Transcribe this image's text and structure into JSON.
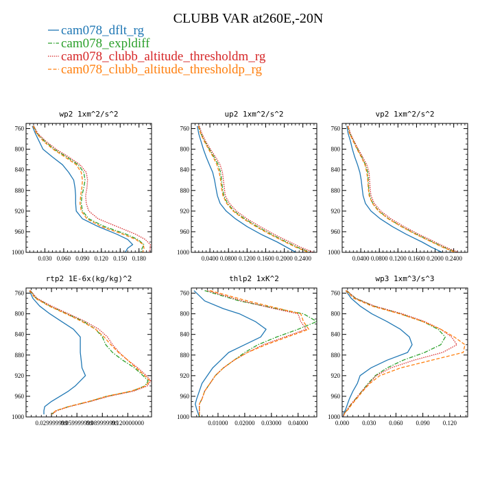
{
  "figure": {
    "title": "CLUBB VAR at260E,-20N",
    "legend": [
      {
        "name": "cam078_dflt_rg",
        "color": "#1f77b4",
        "dash": "solid"
      },
      {
        "name": "cam078_expldiff",
        "color": "#2ca02c",
        "dash": "dashdot"
      },
      {
        "name": "cam078_clubb_altitude_thresholdm_rg",
        "color": "#d62728",
        "dash": "dotted"
      },
      {
        "name": "cam078_clubb_altitude_thresholdp_rg",
        "color": "#ff7f0e",
        "dash": "dashed"
      }
    ]
  },
  "chart_data": [
    {
      "type": "line",
      "title": "wp2   1xm^2/s^2",
      "xlim": [
        0,
        0.2
      ],
      "ylim": [
        1000,
        750
      ],
      "xticks": [
        0.03,
        0.06,
        0.09,
        0.12,
        0.15,
        0.18
      ],
      "xtick_labels": [
        "0.030",
        "0.060",
        "0.090",
        "0.120",
        "0.150",
        "0.180"
      ],
      "yticks": [
        760,
        800,
        840,
        880,
        920,
        960,
        1000
      ],
      "ytick_labels": [
        "760",
        "800",
        "840",
        "880",
        "920",
        "960",
        "1000"
      ],
      "y": [
        755,
        770,
        785,
        800,
        815,
        830,
        845,
        860,
        875,
        890,
        905,
        920,
        935,
        950,
        965,
        975,
        985,
        992,
        1000
      ],
      "series": [
        {
          "name": "cam078_dflt_rg",
          "values": [
            0.01,
            0.015,
            0.021,
            0.027,
            0.042,
            0.058,
            0.068,
            0.076,
            0.078,
            0.079,
            0.079,
            0.08,
            0.09,
            0.115,
            0.145,
            0.162,
            0.17,
            0.162,
            0.158
          ]
        },
        {
          "name": "cam078_expldiff",
          "values": [
            0.012,
            0.018,
            0.03,
            0.045,
            0.065,
            0.083,
            0.092,
            0.094,
            0.092,
            0.089,
            0.088,
            0.09,
            0.1,
            0.125,
            0.16,
            0.178,
            0.188,
            0.185,
            0.183
          ]
        },
        {
          "name": "cam078_clubb_altitude_thresholdm_rg",
          "values": [
            0.012,
            0.019,
            0.032,
            0.048,
            0.068,
            0.086,
            0.096,
            0.098,
            0.097,
            0.095,
            0.096,
            0.1,
            0.115,
            0.145,
            0.175,
            0.19,
            0.198,
            0.198,
            0.196
          ]
        },
        {
          "name": "cam078_clubb_altitude_thresholdp_rg",
          "values": [
            0.011,
            0.017,
            0.028,
            0.043,
            0.062,
            0.08,
            0.088,
            0.09,
            0.089,
            0.087,
            0.086,
            0.088,
            0.097,
            0.12,
            0.155,
            0.175,
            0.187,
            0.188,
            0.186
          ]
        }
      ]
    },
    {
      "type": "line",
      "title": "up2   1xm^2/s^2",
      "xlim": [
        0,
        0.27
      ],
      "ylim": [
        1000,
        750
      ],
      "xticks": [
        0.04,
        0.08,
        0.12,
        0.16,
        0.2,
        0.24
      ],
      "xtick_labels": [
        "0.0400",
        "0.0800",
        "0.1200",
        "0.1600",
        "0.2000",
        "0.2400"
      ],
      "yticks": [
        760,
        800,
        840,
        880,
        920,
        960,
        1000
      ],
      "ytick_labels": [
        "760",
        "800",
        "840",
        "880",
        "920",
        "960",
        "1000"
      ],
      "y": [
        755,
        770,
        785,
        800,
        815,
        830,
        845,
        860,
        875,
        890,
        905,
        920,
        935,
        950,
        965,
        980,
        990,
        1000
      ],
      "series": [
        {
          "name": "cam078_dflt_rg",
          "values": [
            0.013,
            0.016,
            0.021,
            0.026,
            0.032,
            0.039,
            0.046,
            0.05,
            0.053,
            0.056,
            0.062,
            0.075,
            0.095,
            0.12,
            0.15,
            0.185,
            0.205,
            0.225
          ]
        },
        {
          "name": "cam078_expldiff",
          "values": [
            0.016,
            0.021,
            0.029,
            0.039,
            0.049,
            0.058,
            0.063,
            0.065,
            0.067,
            0.07,
            0.078,
            0.092,
            0.115,
            0.142,
            0.172,
            0.205,
            0.228,
            0.255
          ]
        },
        {
          "name": "cam078_clubb_altitude_thresholdm_rg",
          "values": [
            0.017,
            0.023,
            0.031,
            0.041,
            0.052,
            0.062,
            0.067,
            0.069,
            0.071,
            0.073,
            0.082,
            0.097,
            0.12,
            0.148,
            0.178,
            0.212,
            0.235,
            0.263
          ]
        },
        {
          "name": "cam078_clubb_altitude_thresholdp_rg",
          "values": [
            0.015,
            0.02,
            0.028,
            0.037,
            0.047,
            0.055,
            0.06,
            0.063,
            0.065,
            0.068,
            0.076,
            0.09,
            0.112,
            0.139,
            0.169,
            0.202,
            0.225,
            0.252
          ]
        }
      ]
    },
    {
      "type": "line",
      "title": "vp2   1xm^2/s^2",
      "xlim": [
        0,
        0.27
      ],
      "ylim": [
        1000,
        750
      ],
      "xticks": [
        0.04,
        0.08,
        0.12,
        0.16,
        0.2,
        0.24
      ],
      "xtick_labels": [
        "0.0400",
        "0.0800",
        "0.1200",
        "0.1600",
        "0.2000",
        "0.2400"
      ],
      "yticks": [
        760,
        800,
        840,
        880,
        920,
        960,
        1000
      ],
      "ytick_labels": [
        "760",
        "800",
        "840",
        "880",
        "920",
        "960",
        "1000"
      ],
      "y": [
        755,
        770,
        785,
        800,
        815,
        830,
        845,
        860,
        875,
        890,
        905,
        920,
        935,
        950,
        965,
        980,
        990,
        1000
      ],
      "series": [
        {
          "name": "cam078_dflt_rg",
          "values": [
            0.01,
            0.013,
            0.018,
            0.022,
            0.027,
            0.033,
            0.038,
            0.041,
            0.043,
            0.045,
            0.05,
            0.062,
            0.082,
            0.108,
            0.138,
            0.172,
            0.192,
            0.215
          ]
        },
        {
          "name": "cam078_expldiff",
          "values": [
            0.012,
            0.017,
            0.025,
            0.033,
            0.042,
            0.05,
            0.055,
            0.056,
            0.057,
            0.059,
            0.066,
            0.079,
            0.1,
            0.128,
            0.16,
            0.195,
            0.218,
            0.245
          ]
        },
        {
          "name": "cam078_clubb_altitude_thresholdm_rg",
          "values": [
            0.013,
            0.018,
            0.026,
            0.035,
            0.044,
            0.053,
            0.058,
            0.059,
            0.06,
            0.062,
            0.069,
            0.083,
            0.105,
            0.133,
            0.165,
            0.2,
            0.223,
            0.25
          ]
        },
        {
          "name": "cam078_clubb_altitude_thresholdp_rg",
          "values": [
            0.012,
            0.016,
            0.024,
            0.032,
            0.041,
            0.049,
            0.053,
            0.055,
            0.056,
            0.058,
            0.065,
            0.078,
            0.099,
            0.127,
            0.158,
            0.193,
            0.216,
            0.243
          ]
        }
      ]
    },
    {
      "type": "line",
      "title": "rtp2   1E-6x(kg/kg)^2",
      "xlim": [
        0,
        0.148
      ],
      "ylim": [
        1000,
        750
      ],
      "xticks": [
        0.03,
        0.06,
        0.09,
        0.12
      ],
      "xtick_labels": [
        "0.029999999",
        "0.059999999",
        "0.089999999",
        "0.120000000"
      ],
      "yticks": [
        760,
        800,
        840,
        880,
        920,
        960,
        1000
      ],
      "ytick_labels": [
        "760",
        "800",
        "840",
        "880",
        "920",
        "960",
        "1000"
      ],
      "y": [
        755,
        770,
        785,
        800,
        815,
        830,
        845,
        860,
        875,
        890,
        905,
        920,
        930,
        940,
        950,
        960,
        970,
        980,
        988,
        995
      ],
      "series": [
        {
          "name": "cam078_dflt_rg",
          "values": [
            0.004,
            0.008,
            0.016,
            0.028,
            0.042,
            0.056,
            0.064,
            0.064,
            0.064,
            0.065,
            0.066,
            0.07,
            0.064,
            0.058,
            0.05,
            0.04,
            0.03,
            0.022,
            0.021,
            0.021
          ]
        },
        {
          "name": "cam078_expldiff",
          "values": [
            0.005,
            0.012,
            0.028,
            0.048,
            0.068,
            0.082,
            0.09,
            0.094,
            0.102,
            0.114,
            0.128,
            0.138,
            0.144,
            0.14,
            0.125,
            0.095,
            0.075,
            0.05,
            0.035,
            0.03
          ]
        },
        {
          "name": "cam078_clubb_altitude_thresholdm_rg",
          "values": [
            0.005,
            0.013,
            0.03,
            0.05,
            0.07,
            0.086,
            0.096,
            0.102,
            0.11,
            0.12,
            0.132,
            0.142,
            0.147,
            0.143,
            0.127,
            0.098,
            0.076,
            0.051,
            0.036,
            0.031
          ]
        },
        {
          "name": "cam078_clubb_altitude_thresholdp_rg",
          "values": [
            0.004,
            0.011,
            0.027,
            0.047,
            0.066,
            0.082,
            0.092,
            0.1,
            0.109,
            0.12,
            0.13,
            0.14,
            0.146,
            0.141,
            0.124,
            0.095,
            0.074,
            0.05,
            0.035,
            0.03
          ]
        }
      ]
    },
    {
      "type": "line",
      "title": "thlp2   1xK^2",
      "xlim": [
        0,
        0.047
      ],
      "ylim": [
        1000,
        750
      ],
      "xticks": [
        0.01,
        0.02,
        0.03,
        0.04
      ],
      "xtick_labels": [
        "0.01000",
        "0.02000",
        "0.03000",
        "0.04000"
      ],
      "yticks": [
        760,
        800,
        840,
        880,
        920,
        960,
        1000
      ],
      "ytick_labels": [
        "760",
        "800",
        "840",
        "880",
        "920",
        "960",
        "1000"
      ],
      "y": [
        755,
        775,
        790,
        800,
        815,
        830,
        845,
        860,
        875,
        890,
        905,
        920,
        935,
        950,
        965,
        975,
        985,
        992,
        1000
      ],
      "series": [
        {
          "name": "cam078_dflt_rg",
          "values": [
            0.001,
            0.005,
            0.012,
            0.018,
            0.024,
            0.028,
            0.026,
            0.02,
            0.014,
            0.011,
            0.008,
            0.006,
            0.004,
            0.003,
            0.002,
            0.0015,
            0.002,
            0.0025,
            0.003
          ]
        },
        {
          "name": "cam078_expldiff",
          "values": [
            0.005,
            0.018,
            0.032,
            0.042,
            0.047,
            0.04,
            0.032,
            0.025,
            0.02,
            0.016,
            0.012,
            0.009,
            0.007,
            0.005,
            0.004,
            0.003,
            0.003,
            0.003,
            0.003
          ]
        },
        {
          "name": "cam078_clubb_altitude_thresholdm_rg",
          "values": [
            0.006,
            0.019,
            0.031,
            0.04,
            0.041,
            0.043,
            0.035,
            0.027,
            0.021,
            0.016,
            0.012,
            0.009,
            0.007,
            0.005,
            0.004,
            0.003,
            0.003,
            0.003,
            0.003
          ]
        },
        {
          "name": "cam078_clubb_altitude_thresholdp_rg",
          "values": [
            0.007,
            0.021,
            0.033,
            0.041,
            0.042,
            0.044,
            0.036,
            0.028,
            0.021,
            0.016,
            0.012,
            0.009,
            0.007,
            0.005,
            0.004,
            0.003,
            0.003,
            0.003,
            0.003
          ]
        }
      ]
    },
    {
      "type": "line",
      "title": "wp3   1xm^3/s^3",
      "xlim": [
        0,
        0.14
      ],
      "ylim": [
        1000,
        750
      ],
      "xticks": [
        0,
        0.03,
        0.06,
        0.09,
        0.12
      ],
      "xtick_labels": [
        "0.000",
        "0.030",
        "0.060",
        "0.090",
        "0.120"
      ],
      "yticks": [
        760,
        800,
        840,
        880,
        920,
        960,
        1000
      ],
      "ytick_labels": [
        "760",
        "800",
        "840",
        "880",
        "920",
        "960",
        "1000"
      ],
      "y": [
        755,
        770,
        785,
        800,
        815,
        830,
        845,
        860,
        875,
        890,
        905,
        920,
        935,
        950,
        965,
        975,
        985,
        992,
        1000
      ],
      "series": [
        {
          "name": "cam078_dflt_rg",
          "values": [
            0.004,
            0.01,
            0.02,
            0.033,
            0.05,
            0.065,
            0.075,
            0.078,
            0.073,
            0.05,
            0.032,
            0.02,
            0.017,
            0.012,
            0.008,
            0.006,
            0.004,
            0.002,
            0.001
          ]
        },
        {
          "name": "cam078_expldiff",
          "values": [
            0.005,
            0.015,
            0.035,
            0.065,
            0.09,
            0.107,
            0.115,
            0.11,
            0.092,
            0.068,
            0.05,
            0.037,
            0.029,
            0.022,
            0.015,
            0.01,
            0.006,
            0.003,
            0.001
          ]
        },
        {
          "name": "cam078_clubb_altitude_thresholdm_rg",
          "values": [
            0.005,
            0.015,
            0.036,
            0.067,
            0.092,
            0.11,
            0.122,
            0.128,
            0.112,
            0.08,
            0.054,
            0.038,
            0.03,
            0.022,
            0.015,
            0.01,
            0.006,
            0.003,
            0.001
          ]
        },
        {
          "name": "cam078_clubb_altitude_thresholdp_rg",
          "values": [
            0.004,
            0.013,
            0.033,
            0.064,
            0.09,
            0.11,
            0.125,
            0.137,
            0.135,
            0.1,
            0.065,
            0.042,
            0.031,
            0.023,
            0.016,
            0.011,
            0.007,
            0.003,
            0.001
          ]
        }
      ]
    }
  ]
}
